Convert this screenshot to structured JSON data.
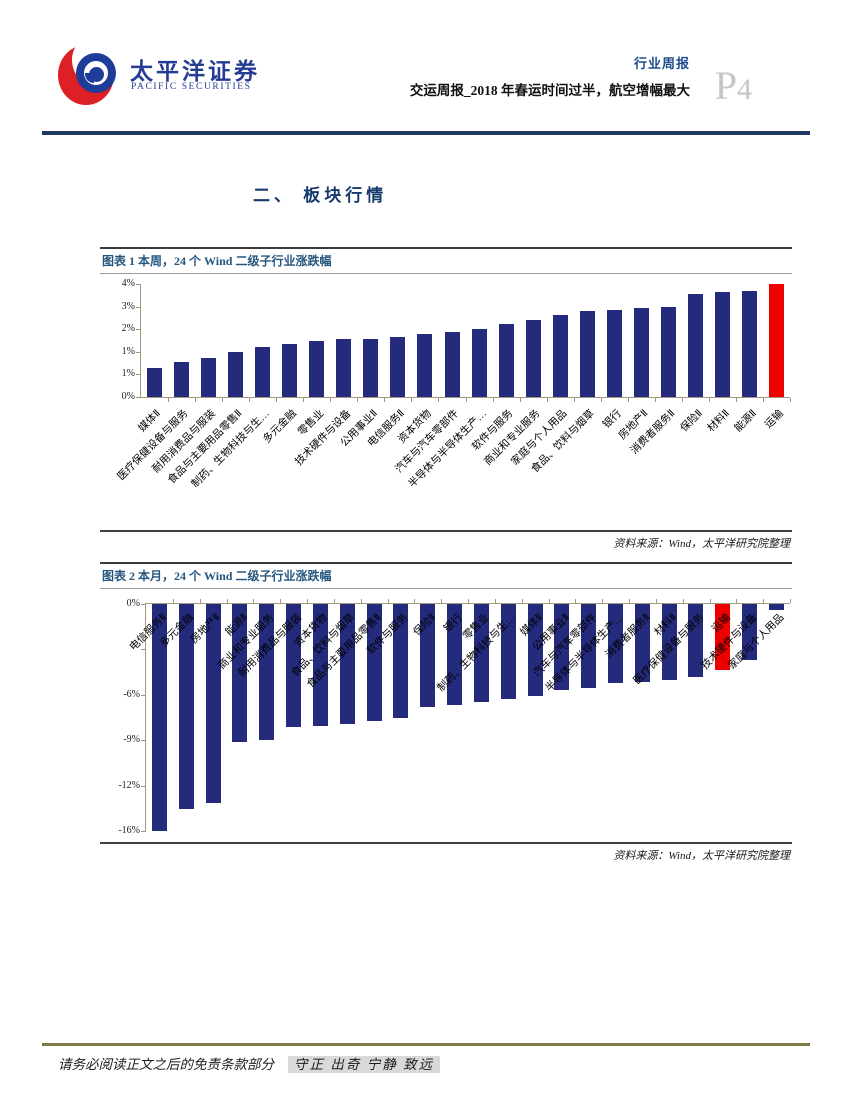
{
  "header": {
    "logo_cn": "太平洋证券",
    "logo_en": "PACIFIC SECURITIES",
    "report_type": "行业周报",
    "report_title": "交运周报_2018 年春运时间过半，航空增幅最大",
    "page_label_p": "P",
    "page_label_num": "4"
  },
  "section": {
    "title": "二、 板块行情"
  },
  "chart_data": [
    {
      "type": "bar",
      "title": "图表 1 本周，24 个 Wind 二级子行业涨跌幅",
      "source": "资料来源：Wind，太平洋研究院整理",
      "unit": "%",
      "ylim": [
        0,
        3.5
      ],
      "grid": false,
      "bar_color": "#242B7D",
      "highlight_color": "#EE0000",
      "highlight_category": "运输",
      "y_ticks": [
        {
          "label": "4%",
          "f": 0
        },
        {
          "label": "3%",
          "f": 0.2
        },
        {
          "label": "2%",
          "f": 0.4
        },
        {
          "label": "1%",
          "f": 0.6
        },
        {
          "label": "1%",
          "f": 0.8
        },
        {
          "label": "0%",
          "f": 1
        }
      ],
      "categories": [
        "媒体Ⅱ",
        "医疗保健设备与服务",
        "耐用消费品与服装",
        "食品与主要用品零售Ⅱ",
        "制药、生物科技与生…",
        "多元金融",
        "零售业",
        "技术硬件与设备",
        "公用事业Ⅱ",
        "电信服务Ⅱ",
        "资本货物",
        "汽车与汽车零部件",
        "半导体与半导体生产…",
        "软件与服务",
        "商业和专业服务",
        "家庭与个人用品",
        "食品、饮料与烟草",
        "银行",
        "房地产Ⅱ",
        "消费者服务Ⅱ",
        "保险Ⅱ",
        "材料Ⅱ",
        "能源Ⅱ",
        "运输"
      ],
      "values": [
        0.9,
        1.1,
        1.2,
        1.4,
        1.55,
        1.65,
        1.75,
        1.8,
        1.8,
        1.85,
        1.95,
        2.0,
        2.1,
        2.25,
        2.4,
        2.55,
        2.65,
        2.7,
        2.75,
        2.8,
        3.2,
        3.25,
        3.3,
        3.5
      ]
    },
    {
      "type": "bar",
      "title": "图表 2 本月，24 个 Wind 二级子行业涨跌幅",
      "source": "资料来源：Wind，太平洋研究院整理",
      "unit": "%",
      "ylim": [
        -15.5,
        0
      ],
      "grid": false,
      "bar_color": "#242B7D",
      "highlight_color": "#EE0000",
      "highlight_category": "运输",
      "y_ticks": [
        {
          "label": "0%",
          "f": 0
        },
        {
          "label": "",
          "f": 0.2
        },
        {
          "label": "-6%",
          "f": 0.4
        },
        {
          "label": "-9%",
          "f": 0.6
        },
        {
          "label": "-12%",
          "f": 0.8
        },
        {
          "label": "-16%",
          "f": 1
        }
      ],
      "categories": [
        "电信服务Ⅱ",
        "多元金融",
        "房地产Ⅱ",
        "能源Ⅱ",
        "商业和专业服务",
        "耐用消费品与服装",
        "资本货物",
        "食品、饮料与烟草",
        "食品与主要用品零售Ⅱ",
        "软件与服务",
        "保险Ⅱ",
        "银行",
        "零售业",
        "制药、生物科技与生…",
        "媒体Ⅱ",
        "公用事业Ⅱ",
        "汽车与汽车零部件",
        "半导体与半导体生产…",
        "消费者服务Ⅱ",
        "材料Ⅱ",
        "医疗保健设备与服务",
        "运输",
        "技术硬件与设备",
        "家庭与个人用品"
      ],
      "values": [
        -15.5,
        -14.0,
        -13.6,
        -9.4,
        -9.3,
        -8.4,
        -8.3,
        -8.2,
        -8.0,
        -7.8,
        -7.0,
        -6.9,
        -6.7,
        -6.5,
        -6.3,
        -5.9,
        -5.7,
        -5.4,
        -5.3,
        -5.2,
        -5.0,
        -4.5,
        -3.8,
        -0.4
      ]
    }
  ],
  "footer": {
    "disclaimer": "请务必阅读正文之后的免责条款部分",
    "slogan": "守正 出奇 宁静 致远"
  },
  "colors": {
    "header_rule": "#203A64",
    "footer_rule": "#7E7B49",
    "bar_navy": "#242B7D",
    "bar_red": "#EE0000",
    "title_blue": "#27577F"
  }
}
